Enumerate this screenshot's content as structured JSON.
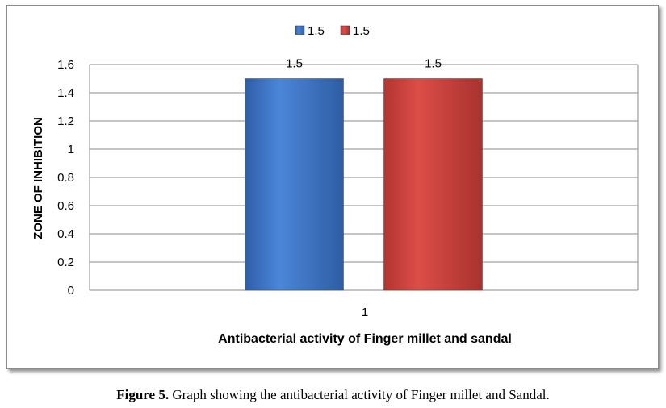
{
  "chart_data": {
    "type": "bar",
    "categories": [
      "1"
    ],
    "series": [
      {
        "name": "1.5",
        "values": [
          1.5
        ],
        "color": "#3a6fc0"
      },
      {
        "name": "1.5",
        "values": [
          1.5
        ],
        "color": "#c7403a"
      }
    ],
    "data_labels": [
      "1.5",
      "1.5"
    ],
    "xlabel": "Antibacterial activity of Finger millet and sandal",
    "ylabel": "ZONE OF INHIBITION",
    "ylim": [
      0,
      1.6
    ],
    "yticks": [
      "0",
      "0.2",
      "0.4",
      "0.6",
      "0.8",
      "1",
      "1.2",
      "1.4",
      "1.6"
    ],
    "grid": true,
    "legend_position": "top-center"
  },
  "caption": {
    "label": "Figure 5.",
    "text": " Graph showing the antibacterial activity of Finger millet and Sandal."
  }
}
